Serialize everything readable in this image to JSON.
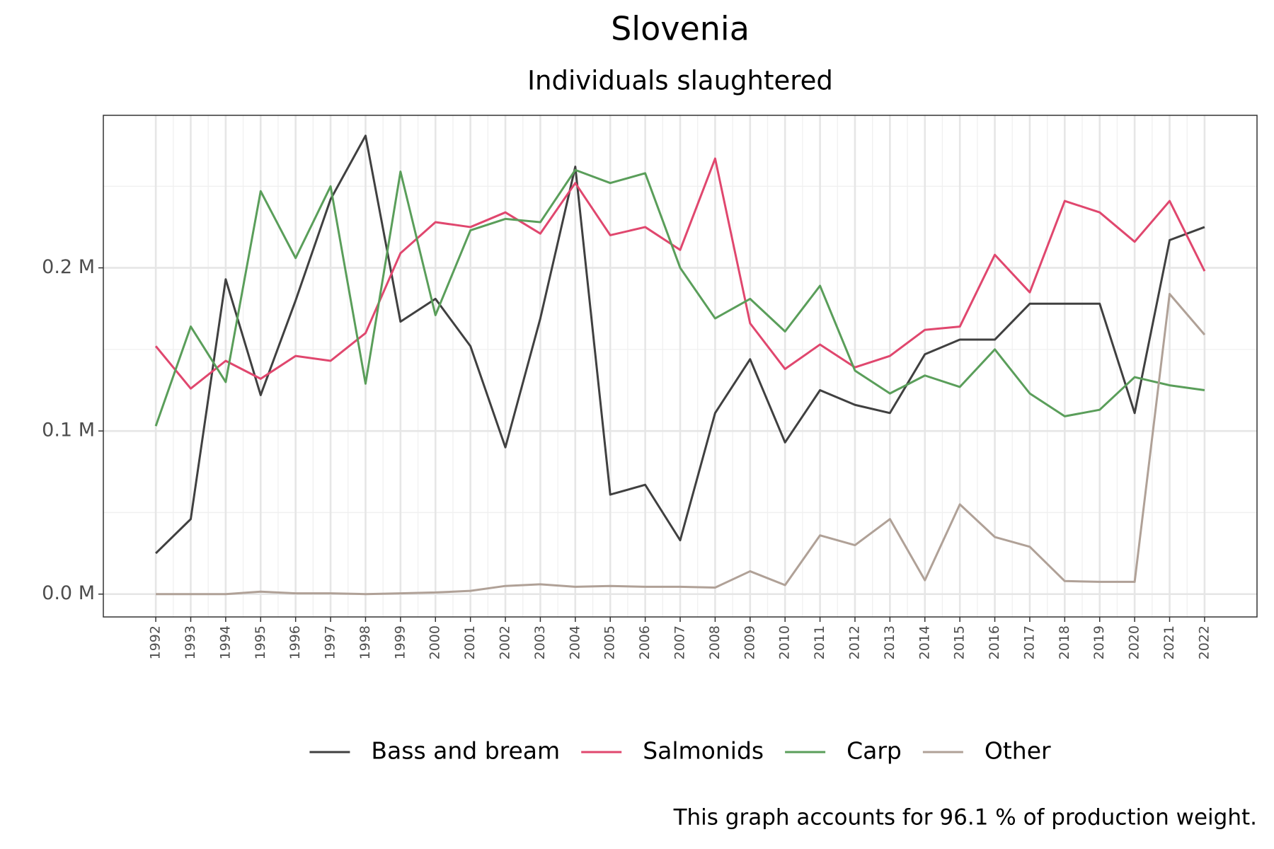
{
  "chart_data": {
    "type": "line",
    "title": "Slovenia",
    "subtitle": "Individuals slaughtered",
    "caption": "This graph accounts for 96.1 % of production weight.",
    "x": [
      1992,
      1993,
      1994,
      1995,
      1996,
      1997,
      1998,
      1999,
      2000,
      2001,
      2002,
      2003,
      2004,
      2005,
      2006,
      2007,
      2008,
      2009,
      2010,
      2011,
      2012,
      2013,
      2014,
      2015,
      2016,
      2017,
      2018,
      2019,
      2020,
      2021,
      2022
    ],
    "xlim": [
      1990.5,
      2023.5
    ],
    "xticks": [
      1992,
      1993,
      1994,
      1995,
      1996,
      1997,
      1998,
      1999,
      2000,
      2001,
      2002,
      2003,
      2004,
      2005,
      2006,
      2007,
      2008,
      2009,
      2010,
      2011,
      2012,
      2013,
      2014,
      2015,
      2016,
      2017,
      2018,
      2019,
      2020,
      2021,
      2022
    ],
    "ylim": [
      -0.014,
      0.2935
    ],
    "yticks": [
      {
        "value": 0,
        "label": "0.0 M"
      },
      {
        "value": 0.1,
        "label": "0.1 M"
      },
      {
        "value": 0.2,
        "label": "0.2 M"
      }
    ],
    "grid": true,
    "legend_position": "bottom",
    "series": [
      {
        "name": "Bass and bream",
        "color": "#404040",
        "values": [
          0.025,
          0.046,
          0.193,
          0.122,
          0.18,
          0.242,
          0.281,
          0.167,
          0.181,
          0.152,
          0.09,
          0.169,
          0.262,
          0.061,
          0.067,
          0.033,
          0.111,
          0.144,
          0.093,
          0.125,
          0.116,
          0.111,
          0.147,
          0.156,
          0.156,
          0.178,
          0.178,
          0.178,
          0.111,
          0.217,
          0.225
        ]
      },
      {
        "name": "Salmonids",
        "color": "#e0476e",
        "values": [
          0.152,
          0.126,
          0.143,
          0.132,
          0.146,
          0.143,
          0.16,
          0.209,
          0.228,
          0.225,
          0.234,
          0.221,
          0.252,
          0.22,
          0.225,
          0.211,
          0.267,
          0.166,
          0.138,
          0.153,
          0.139,
          0.146,
          0.162,
          0.164,
          0.208,
          0.185,
          0.241,
          0.234,
          0.216,
          0.241,
          0.198
        ]
      },
      {
        "name": "Carp",
        "color": "#5a9e5a",
        "values": [
          0.103,
          0.164,
          0.13,
          0.247,
          0.206,
          0.25,
          0.129,
          0.259,
          0.171,
          0.223,
          0.23,
          0.228,
          0.26,
          0.252,
          0.258,
          0.2,
          0.169,
          0.181,
          0.161,
          0.189,
          0.137,
          0.123,
          0.134,
          0.127,
          0.15,
          0.123,
          0.109,
          0.113,
          0.133,
          0.128,
          0.125
        ]
      },
      {
        "name": "Other",
        "color": "#b0a197",
        "values": [
          0,
          0,
          0,
          0.0015,
          0.0005,
          0.0005,
          0,
          0.0005,
          0.001,
          0.002,
          0.005,
          0.006,
          0.0045,
          0.005,
          0.0045,
          0.0045,
          0.004,
          0.014,
          0.0055,
          0.036,
          0.03,
          0.046,
          0.0085,
          0.055,
          0.035,
          0.029,
          0.008,
          0.0075,
          0.0075,
          0.184,
          0.159
        ]
      }
    ]
  }
}
